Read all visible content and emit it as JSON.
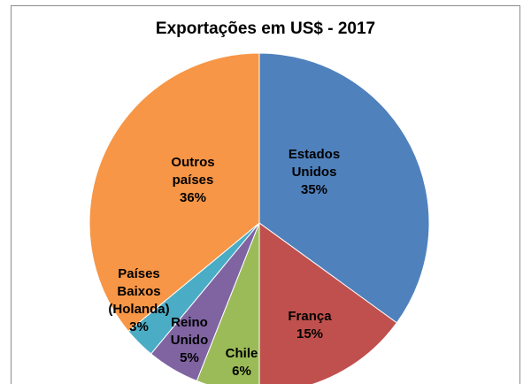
{
  "chart_data": {
    "type": "pie",
    "title": "Exportações em US$ - 2017",
    "categories": [
      "Estados Unidos",
      "França",
      "Chile",
      "Reino Unido",
      "Países Baixos (Holanda)",
      "Outros países"
    ],
    "values": [
      35,
      15,
      6,
      5,
      3,
      36
    ],
    "value_labels": [
      "35%",
      "15%",
      "6%",
      "5%",
      "3%",
      "36%"
    ],
    "colors": [
      "#4f81bd",
      "#c0504d",
      "#9bbb59",
      "#8064a2",
      "#4bacc6",
      "#f79646"
    ]
  }
}
